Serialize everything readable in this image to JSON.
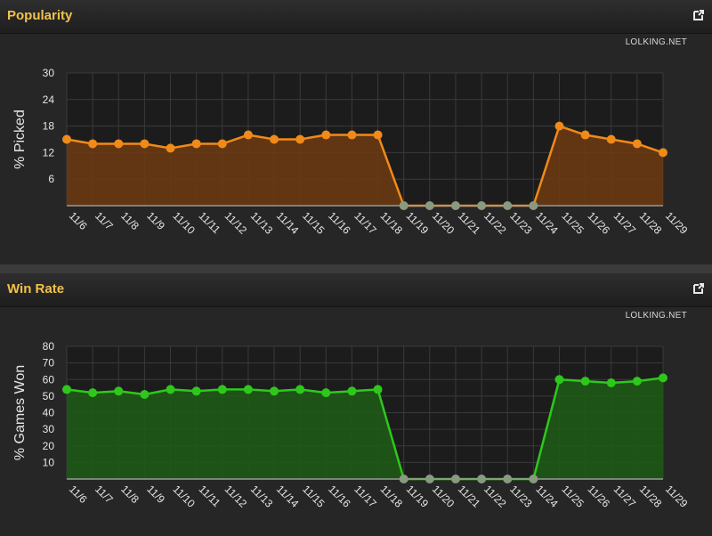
{
  "panels": [
    {
      "title": "Popularity",
      "brand": "LOLKING.NET",
      "icon": "external-link-icon"
    },
    {
      "title": "Win Rate",
      "brand": "LOLKING.NET",
      "icon": "external-link-icon"
    }
  ],
  "chart_data": [
    {
      "type": "area",
      "ylabel": "% Picked",
      "xlabel": "",
      "ylim": [
        0,
        30
      ],
      "yticks": [
        6,
        12,
        18,
        24,
        30
      ],
      "grid": true,
      "color": "#f08a18",
      "fill": "#6a3a12",
      "categories": [
        "11/6",
        "11/7",
        "11/8",
        "11/9",
        "11/10",
        "11/11",
        "11/12",
        "11/13",
        "11/14",
        "11/15",
        "11/16",
        "11/17",
        "11/18",
        "11/19",
        "11/20",
        "11/21",
        "11/22",
        "11/23",
        "11/24",
        "11/25",
        "11/26",
        "11/27",
        "11/28",
        "11/29"
      ],
      "values": [
        15,
        14,
        14,
        14,
        13,
        14,
        14,
        16,
        15,
        15,
        16,
        16,
        16,
        0,
        0,
        0,
        0,
        0,
        0,
        18,
        16,
        15,
        14,
        12
      ]
    },
    {
      "type": "area",
      "ylabel": "% Games Won",
      "xlabel": "",
      "ylim": [
        0,
        80
      ],
      "yticks": [
        10,
        20,
        30,
        40,
        50,
        60,
        70,
        80
      ],
      "grid": true,
      "color": "#2ec81c",
      "fill": "#1f5a17",
      "categories": [
        "11/6",
        "11/7",
        "11/8",
        "11/9",
        "11/10",
        "11/11",
        "11/12",
        "11/13",
        "11/14",
        "11/15",
        "11/16",
        "11/17",
        "11/18",
        "11/19",
        "11/20",
        "11/21",
        "11/22",
        "11/23",
        "11/24",
        "11/25",
        "11/26",
        "11/27",
        "11/28",
        "11/29"
      ],
      "values": [
        54,
        52,
        53,
        51,
        54,
        53,
        54,
        54,
        53,
        54,
        52,
        53,
        54,
        0,
        0,
        0,
        0,
        0,
        0,
        60,
        59,
        58,
        59,
        61
      ]
    }
  ]
}
